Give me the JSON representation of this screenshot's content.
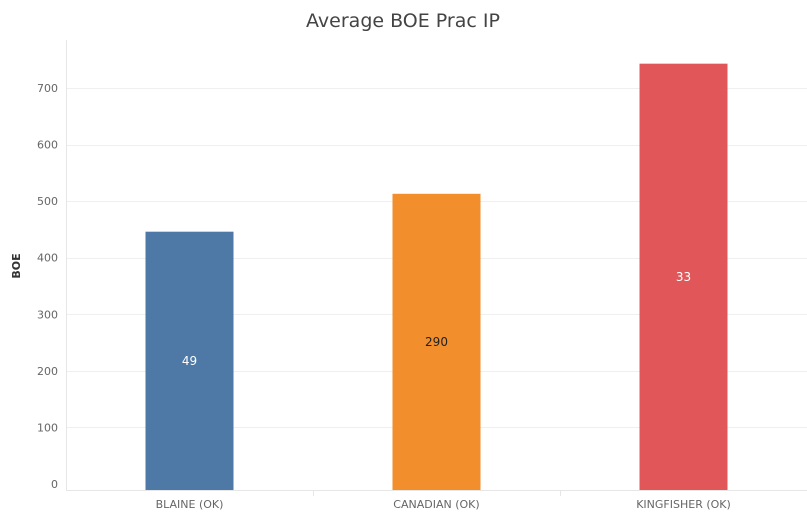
{
  "chart_data": {
    "type": "bar",
    "title": "Average BOE Prac IP",
    "xlabel": "",
    "ylabel": "BOE",
    "ylim": [
      0,
      760
    ],
    "yticks": [
      0,
      100,
      200,
      300,
      400,
      500,
      600,
      700
    ],
    "categories": [
      "BLAINE (OK)",
      "CANADIAN (OK)",
      "KINGFISHER (OK)"
    ],
    "values": [
      446,
      513,
      743
    ],
    "data_labels": [
      "49",
      "290",
      "33"
    ],
    "colors": [
      "#4e79a7",
      "#f28e2b",
      "#e15759"
    ],
    "label_colors": [
      "#ffffff",
      "#222222",
      "#ffffff"
    ],
    "grid": true
  }
}
